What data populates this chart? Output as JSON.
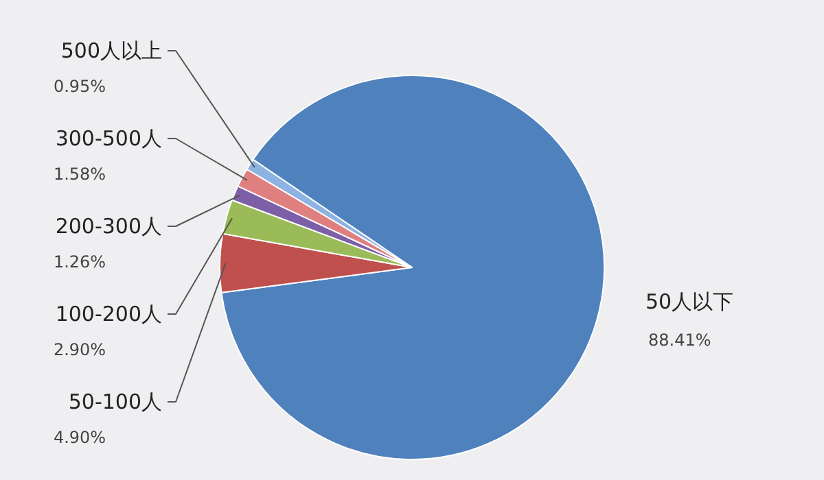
{
  "chart_data": {
    "type": "pie",
    "categories": [
      "50人以下",
      "50-100人",
      "100-200人",
      "200-300人",
      "300-500人",
      "500人以上"
    ],
    "values": [
      88.41,
      4.9,
      2.9,
      1.26,
      1.58,
      0.95
    ],
    "colors": [
      "#4f81bd",
      "#c0504d",
      "#9bbb59",
      "#7d5fa8",
      "#df7f7f",
      "#8db3e2"
    ],
    "value_labels": [
      "88.41%",
      "4.90%",
      "2.90%",
      "1.26%",
      "1.58%",
      "0.95%"
    ]
  }
}
